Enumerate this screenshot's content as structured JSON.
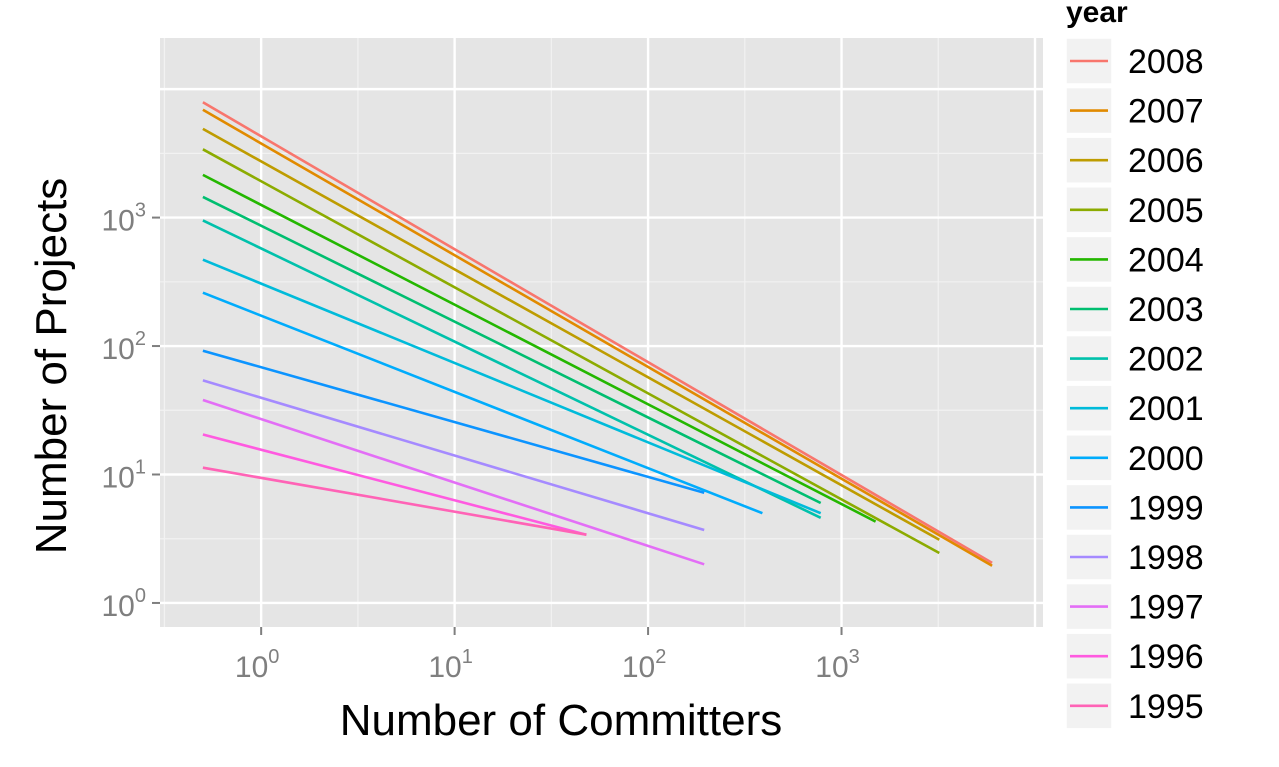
{
  "chart_data": {
    "type": "line",
    "xlabel": "Number of Committers",
    "ylabel": "Number of Projects",
    "x_scale": "log10",
    "y_scale": "log10",
    "xlim": [
      0.3,
      11000
    ],
    "ylim": [
      0.65,
      25000
    ],
    "x_ticks": [
      {
        "base": "10",
        "exp": "0",
        "value": 1
      },
      {
        "base": "10",
        "exp": "1",
        "value": 10
      },
      {
        "base": "10",
        "exp": "2",
        "value": 100
      },
      {
        "base": "10",
        "exp": "3",
        "value": 1000
      }
    ],
    "y_ticks": [
      {
        "base": "10",
        "exp": "0",
        "value": 1
      },
      {
        "base": "10",
        "exp": "1",
        "value": 10
      },
      {
        "base": "10",
        "exp": "2",
        "value": 100
      },
      {
        "base": "10",
        "exp": "3",
        "value": 1000
      }
    ],
    "grid": true,
    "legend": {
      "title": "year",
      "placement": "right"
    },
    "series": [
      {
        "name": "2008",
        "color": "#F8766D",
        "points": [
          [
            0.5,
            7900
          ],
          [
            6000,
            2.05
          ]
        ]
      },
      {
        "name": "2007",
        "color": "#E18A00",
        "points": [
          [
            0.5,
            6900
          ],
          [
            6000,
            1.95
          ]
        ]
      },
      {
        "name": "2006",
        "color": "#BE9C00",
        "points": [
          [
            0.5,
            4900
          ],
          [
            3200,
            3.1
          ]
        ]
      },
      {
        "name": "2005",
        "color": "#8CAB00",
        "points": [
          [
            0.5,
            3400
          ],
          [
            3200,
            2.45
          ]
        ]
      },
      {
        "name": "2004",
        "color": "#24B700",
        "points": [
          [
            0.5,
            2150
          ],
          [
            1500,
            4.3
          ]
        ]
      },
      {
        "name": "2003",
        "color": "#00BE70",
        "points": [
          [
            0.5,
            1450
          ],
          [
            780,
            6.0
          ]
        ]
      },
      {
        "name": "2002",
        "color": "#00C1AB",
        "points": [
          [
            0.5,
            950
          ],
          [
            780,
            4.6
          ]
        ]
      },
      {
        "name": "2001",
        "color": "#00BBDA",
        "points": [
          [
            0.5,
            470
          ],
          [
            780,
            5.0
          ]
        ]
      },
      {
        "name": "2000",
        "color": "#00ACFC",
        "points": [
          [
            0.5,
            260
          ],
          [
            390,
            5.0
          ]
        ]
      },
      {
        "name": "1999",
        "color": "#0C94FF",
        "points": [
          [
            0.5,
            92
          ],
          [
            195,
            7.2
          ]
        ]
      },
      {
        "name": "1998",
        "color": "#A58AFF",
        "points": [
          [
            0.5,
            54
          ],
          [
            195,
            3.7
          ]
        ]
      },
      {
        "name": "1997",
        "color": "#E36EF6",
        "points": [
          [
            0.5,
            38
          ],
          [
            195,
            2.0
          ]
        ]
      },
      {
        "name": "1996",
        "color": "#FF5AE0",
        "points": [
          [
            0.5,
            20.5
          ],
          [
            48,
            3.4
          ]
        ]
      },
      {
        "name": "1995",
        "color": "#FF63B6",
        "points": [
          [
            0.5,
            11.3
          ],
          [
            48,
            3.4
          ]
        ]
      }
    ]
  }
}
